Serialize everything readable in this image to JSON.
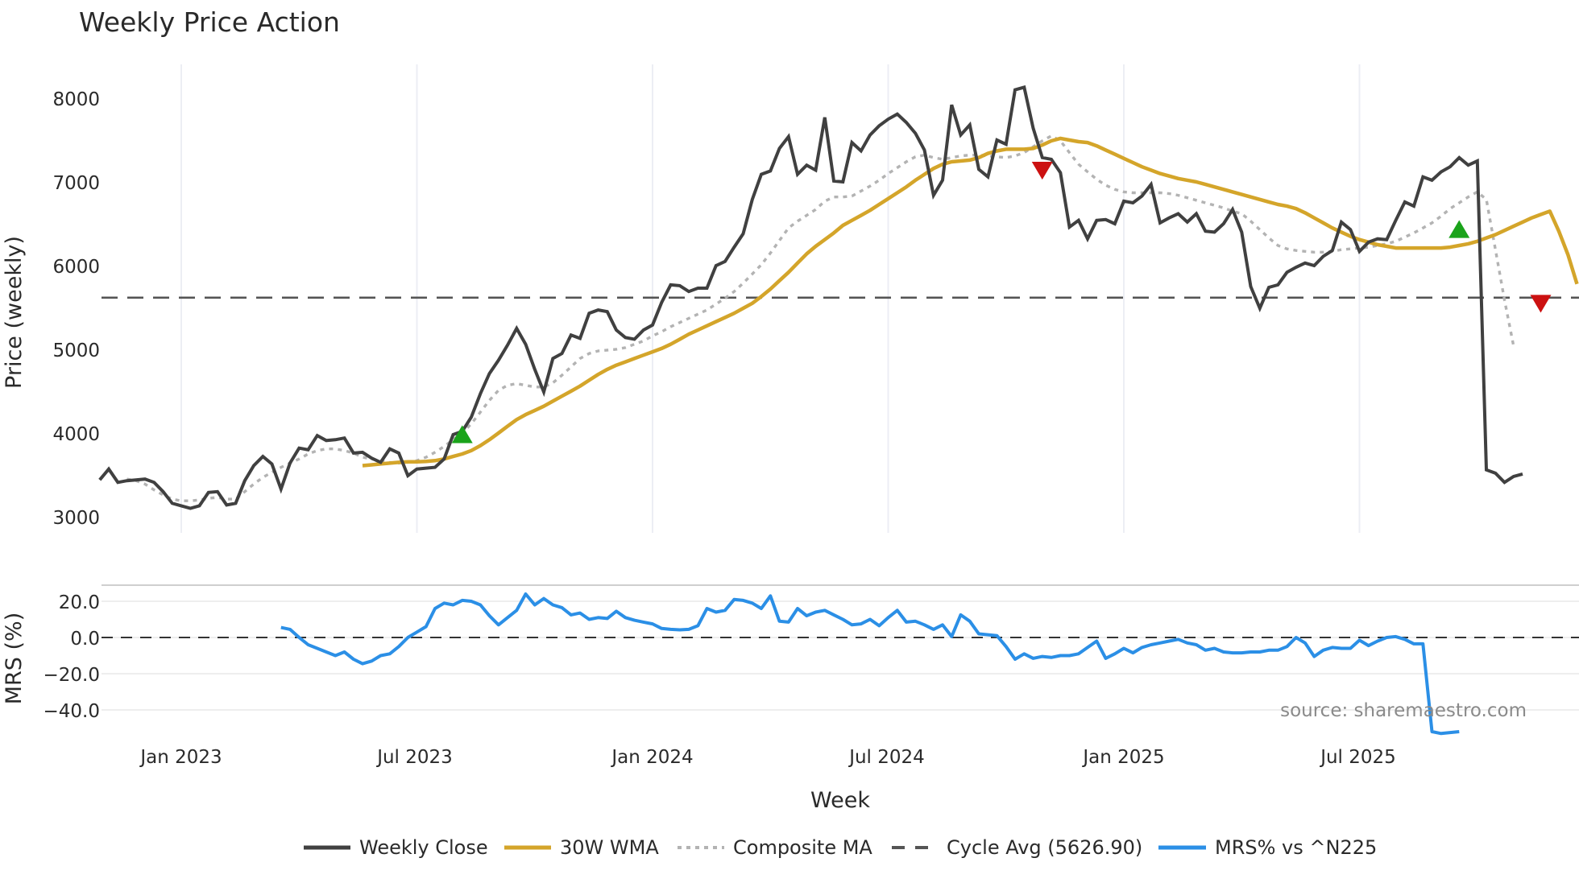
{
  "chart_data": [
    {
      "type": "line",
      "title": "Weekly Price Action",
      "xlabel": "Week",
      "ylabel": "Price (weekly)",
      "ylim": [
        2800,
        8400
      ],
      "yticks": [
        3000,
        4000,
        5000,
        6000,
        7000,
        8000
      ],
      "x_tick_labels": [
        "Jan 2023",
        "Jul 2023",
        "Jan 2024",
        "Jul 2024",
        "Jan 2025",
        "Jul 2025"
      ],
      "x_tick_week_index": [
        0,
        26,
        52,
        78,
        104,
        130
      ],
      "grid": true,
      "x_start_week_index": -9,
      "reference_line": {
        "name": "Cycle Avg (5626.90)",
        "value": 5626.9
      },
      "series": [
        {
          "name": "Weekly Close",
          "color": "#404040",
          "start_week_index": -9,
          "values": [
            3450,
            3580,
            3420,
            3440,
            3450,
            3460,
            3420,
            3310,
            3170,
            3140,
            3110,
            3140,
            3300,
            3310,
            3150,
            3170,
            3440,
            3620,
            3730,
            3640,
            3340,
            3650,
            3830,
            3810,
            3980,
            3920,
            3930,
            3950,
            3770,
            3780,
            3710,
            3660,
            3820,
            3770,
            3500,
            3580,
            3590,
            3600,
            3700,
            3990,
            4030,
            4200,
            4480,
            4720,
            4880,
            5060,
            5260,
            5070,
            4770,
            4500,
            4900,
            4960,
            5180,
            5140,
            5440,
            5480,
            5460,
            5240,
            5150,
            5130,
            5240,
            5300,
            5570,
            5780,
            5770,
            5700,
            5740,
            5740,
            6010,
            6060,
            6230,
            6390,
            6800,
            7100,
            7140,
            7410,
            7550,
            7100,
            7210,
            7150,
            7780,
            7020,
            7010,
            7480,
            7380,
            7570,
            7680,
            7760,
            7820,
            7720,
            7590,
            7390,
            6850,
            7030,
            7930,
            7570,
            7690,
            7160,
            7070,
            7510,
            7460,
            8110,
            8140,
            7650,
            7300,
            7280,
            7120,
            6470,
            6550,
            6330,
            6550,
            6560,
            6510,
            6780,
            6760,
            6840,
            6980,
            6520,
            6580,
            6630,
            6530,
            6630,
            6420,
            6410,
            6510,
            6680,
            6410,
            5760,
            5500,
            5750,
            5780,
            5930,
            5990,
            6040,
            6010,
            6120,
            6190,
            6530,
            6440,
            6180,
            6290,
            6330,
            6320,
            6550,
            6770,
            6720,
            7070,
            7030,
            7130,
            7190,
            7300,
            7210,
            7260,
            3570,
            3530,
            3420,
            3490,
            3520
          ]
        },
        {
          "name": "30W WMA",
          "color": "#d4a52a",
          "start_week_index": 20,
          "values": [
            3620,
            3630,
            3640,
            3650,
            3660,
            3665,
            3665,
            3670,
            3680,
            3700,
            3730,
            3760,
            3800,
            3860,
            3930,
            4010,
            4090,
            4170,
            4230,
            4280,
            4330,
            4390,
            4450,
            4510,
            4570,
            4640,
            4710,
            4770,
            4820,
            4860,
            4900,
            4940,
            4980,
            5020,
            5070,
            5130,
            5190,
            5240,
            5290,
            5340,
            5390,
            5440,
            5500,
            5560,
            5640,
            5730,
            5830,
            5930,
            6040,
            6150,
            6240,
            6320,
            6400,
            6490,
            6550,
            6610,
            6670,
            6740,
            6810,
            6880,
            6950,
            7030,
            7100,
            7170,
            7220,
            7250,
            7260,
            7270,
            7300,
            7350,
            7380,
            7400,
            7400,
            7400,
            7410,
            7450,
            7500,
            7530,
            7510,
            7490,
            7480,
            7440,
            7390,
            7340,
            7290,
            7240,
            7190,
            7150,
            7110,
            7080,
            7050,
            7030,
            7010,
            6980,
            6950,
            6920,
            6890,
            6860,
            6830,
            6800,
            6770,
            6740,
            6720,
            6690,
            6640,
            6580,
            6520,
            6460,
            6410,
            6360,
            6320,
            6290,
            6260,
            6240,
            6220,
            6220,
            6220,
            6220,
            6220,
            6220,
            6230,
            6250,
            6270,
            6300,
            6340,
            6380,
            6430,
            6480,
            6530,
            6580,
            6620,
            6660,
            6420,
            6140,
            5790
          ]
        },
        {
          "name": "Composite MA",
          "color": "#b3b3b3",
          "start_week_index": -6,
          "values": [
            3460,
            3440,
            3400,
            3330,
            3270,
            3220,
            3200,
            3200,
            3210,
            3230,
            3240,
            3220,
            3220,
            3310,
            3400,
            3480,
            3540,
            3600,
            3650,
            3700,
            3760,
            3800,
            3820,
            3820,
            3800,
            3770,
            3720,
            3700,
            3680,
            3660,
            3650,
            3660,
            3680,
            3720,
            3780,
            3850,
            3930,
            4010,
            4120,
            4260,
            4400,
            4520,
            4580,
            4600,
            4580,
            4560,
            4560,
            4610,
            4700,
            4800,
            4900,
            4960,
            4990,
            5000,
            5010,
            5030,
            5070,
            5110,
            5170,
            5220,
            5280,
            5330,
            5380,
            5430,
            5480,
            5550,
            5620,
            5700,
            5800,
            5910,
            6020,
            6160,
            6310,
            6460,
            6540,
            6610,
            6680,
            6780,
            6830,
            6830,
            6840,
            6900,
            6960,
            7030,
            7110,
            7180,
            7250,
            7310,
            7330,
            7300,
            7280,
            7300,
            7320,
            7330,
            7330,
            7320,
            7310,
            7300,
            7320,
            7360,
            7430,
            7500,
            7560,
            7500,
            7360,
            7220,
            7130,
            7040,
            6970,
            6920,
            6890,
            6880,
            6880,
            6880,
            6880,
            6870,
            6850,
            6820,
            6790,
            6760,
            6730,
            6700,
            6660,
            6630,
            6540,
            6440,
            6340,
            6250,
            6210,
            6190,
            6180,
            6170,
            6170,
            6180,
            6200,
            6210,
            6220,
            6230,
            6250,
            6270,
            6300,
            6350,
            6400,
            6460,
            6520,
            6600,
            6690,
            6760,
            6830,
            6890,
            6800,
            6200,
            5600,
            5050
          ]
        }
      ],
      "markers": [
        {
          "type": "buy",
          "shape": "triangle-up",
          "color": "#1aa31a",
          "week_index": 31,
          "value": 3990
        },
        {
          "type": "sell",
          "shape": "triangle-down",
          "color": "#cc1111",
          "week_index": 95,
          "value": 7150
        },
        {
          "type": "buy",
          "shape": "triangle-up",
          "color": "#1aa31a",
          "week_index": 141,
          "value": 6440
        },
        {
          "type": "sell",
          "shape": "triangle-down",
          "color": "#cc1111",
          "week_index": 150,
          "value": 5560
        }
      ]
    },
    {
      "type": "line",
      "title": "",
      "xlabel": "Week",
      "ylabel": "MRS (%)",
      "ylim": [
        -55,
        28
      ],
      "yticks": [
        20.0,
        0.0,
        -20.0,
        -40.0
      ],
      "ytick_labels": [
        "20.0",
        "0.0",
        "−20.0",
        "−40.0"
      ],
      "grid": true,
      "reference_line": {
        "name": "zero",
        "value": 0.0
      },
      "series": [
        {
          "name": "MRS% vs ^N225",
          "color": "#2b8fe6",
          "start_week_index": 11,
          "values": [
            5.5,
            4.5,
            0,
            -4,
            -6,
            -8,
            -10,
            -8,
            -12,
            -14.5,
            -13,
            -10,
            -9,
            -5,
            0,
            3,
            6,
            16,
            19,
            18,
            20.5,
            20,
            18,
            12,
            7,
            11,
            15,
            24,
            18,
            21.5,
            18,
            16.5,
            12.5,
            13.5,
            10,
            11,
            10.5,
            14.5,
            11,
            9.5,
            8.5,
            7.5,
            5,
            4.5,
            4.2,
            4.5,
            6.5,
            16,
            14,
            15,
            21,
            20.5,
            19,
            16,
            23,
            9,
            8.5,
            16,
            12,
            14,
            15,
            12.5,
            10,
            7,
            7.5,
            10,
            6.5,
            11,
            15,
            8.5,
            9,
            7,
            4.5,
            7,
            0.5,
            12.5,
            9,
            2,
            1.5,
            1,
            -5,
            -12,
            -9,
            -11.5,
            -10.5,
            -11,
            -10,
            -10,
            -9,
            -5.5,
            -2,
            -11.5,
            -9,
            -6,
            -8.5,
            -5.5,
            -4,
            -3,
            -2,
            -1,
            -3,
            -4,
            -7,
            -6,
            -8,
            -8.5,
            -8.5,
            -8,
            -8,
            -7,
            -7,
            -5,
            0,
            -3,
            -10.5,
            -7,
            -5.5,
            -6,
            -6,
            -1.5,
            -4.5,
            -2,
            0,
            0.5,
            -1,
            -3.5,
            -3.5,
            -52,
            -53,
            -52.5,
            -52
          ]
        }
      ]
    }
  ],
  "header": {
    "title": "Weekly Price Action"
  },
  "price_panel": {
    "ylabel": "Price (weekly)",
    "yticks": [
      "3000",
      "4000",
      "5000",
      "6000",
      "7000",
      "8000"
    ]
  },
  "mrs_panel": {
    "ylabel": "MRS (%)",
    "yticks": [
      "20.0",
      "0.0",
      "−20.0",
      "−40.0"
    ],
    "source": "source: sharemaestro.com"
  },
  "xaxis": {
    "title": "Week",
    "ticks": [
      "Jan 2023",
      "Jul 2023",
      "Jan 2024",
      "Jul 2024",
      "Jan 2025",
      "Jul 2025"
    ]
  },
  "legend": {
    "items": [
      {
        "label": "Weekly Close",
        "color": "#404040",
        "style": "solid"
      },
      {
        "label": "30W WMA",
        "color": "#d4a52a",
        "style": "solid"
      },
      {
        "label": "Composite MA",
        "color": "#b3b3b3",
        "style": "dotted"
      },
      {
        "label": "Cycle Avg (5626.90)",
        "color": "#555555",
        "style": "dashed"
      },
      {
        "label": "MRS% vs ^N225",
        "color": "#2b8fe6",
        "style": "solid"
      }
    ]
  }
}
